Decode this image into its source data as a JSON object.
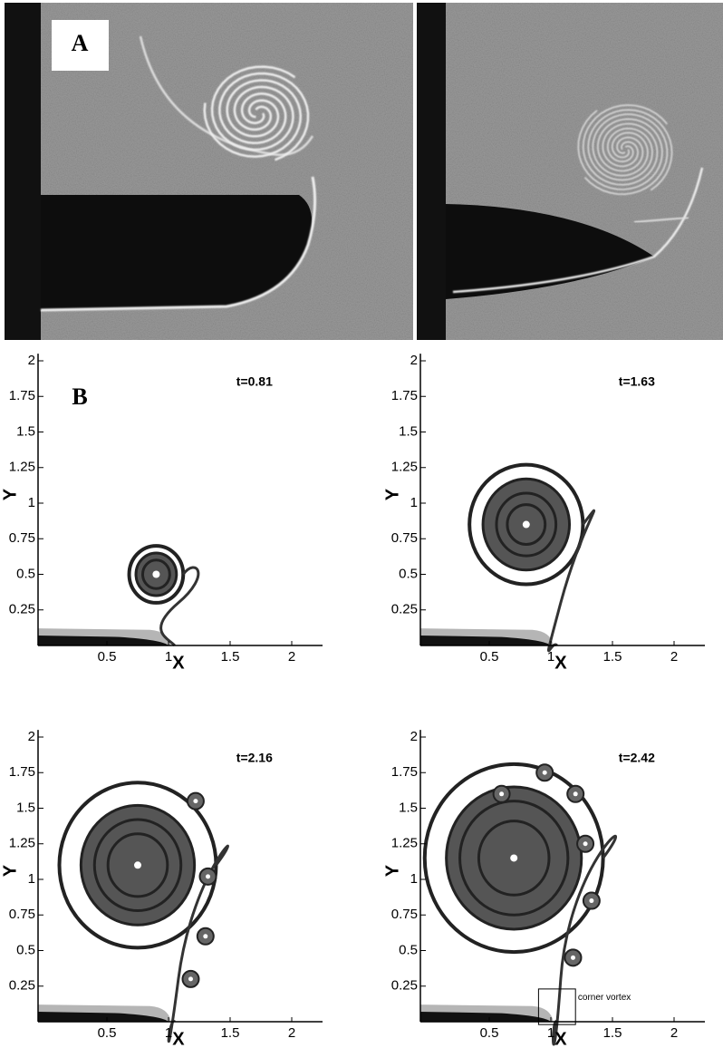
{
  "panel_a": {
    "label": "A"
  },
  "panel_b": {
    "label": "B",
    "plots": [
      {
        "time": "t=0.81",
        "x_label": "X",
        "y_label": "Y",
        "xticks": [
          "0.5",
          "1",
          "1.5",
          "2"
        ],
        "yticks": [
          "0.25",
          "0.5",
          "0.75",
          "1",
          "1.25",
          "1.5",
          "1.75",
          "2"
        ]
      },
      {
        "time": "t=1.63",
        "x_label": "X",
        "y_label": "Y",
        "xticks": [
          "0.5",
          "1",
          "1.5",
          "2"
        ],
        "yticks": [
          "0.25",
          "0.5",
          "0.75",
          "1",
          "1.25",
          "1.5",
          "1.75",
          "2"
        ]
      },
      {
        "time": "t=2.16",
        "x_label": "X",
        "y_label": "Y",
        "xticks": [
          "0.5",
          "1",
          "1.5",
          "2"
        ],
        "yticks": [
          "0.25",
          "0.5",
          "0.75",
          "1",
          "1.25",
          "1.5",
          "1.75",
          "2"
        ]
      },
      {
        "time": "t=2.42",
        "x_label": "X",
        "y_label": "Y",
        "xticks": [
          "0.5",
          "1",
          "1.5",
          "2"
        ],
        "yticks": [
          "0.25",
          "0.5",
          "0.75",
          "1",
          "1.25",
          "1.5",
          "1.75",
          "2"
        ],
        "annotation": "corner vortex"
      }
    ]
  }
}
